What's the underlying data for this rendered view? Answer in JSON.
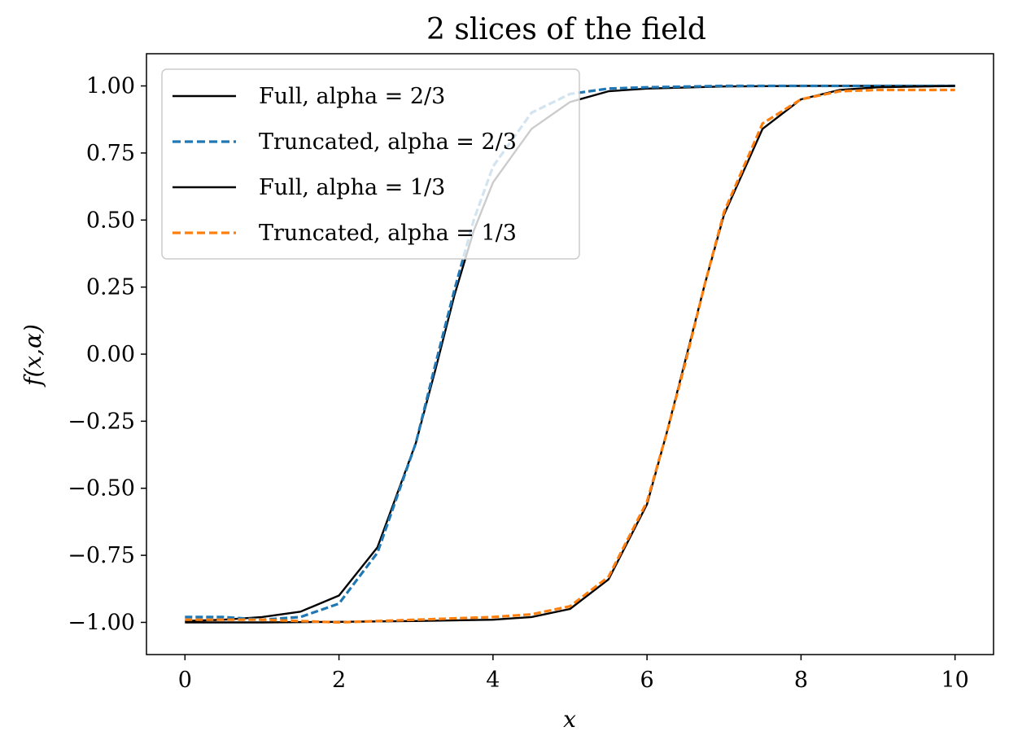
{
  "chart_data": {
    "type": "line",
    "title": "2 slices of the field",
    "xlabel": "x",
    "ylabel": "f(x,α)",
    "xlim": [
      -0.5,
      10.5
    ],
    "ylim": [
      -1.12,
      1.12
    ],
    "xticks": [
      0,
      2,
      4,
      6,
      8,
      10
    ],
    "xtick_labels": [
      "0",
      "2",
      "4",
      "6",
      "8",
      "10"
    ],
    "yticks": [
      1.0,
      0.75,
      0.5,
      0.25,
      0.0,
      -0.25,
      -0.5,
      -0.75,
      -1.0
    ],
    "ytick_labels": [
      "1.00",
      "0.75",
      "0.50",
      "0.25",
      "0.00",
      "−0.25",
      "−0.50",
      "−0.75",
      "−1.00"
    ],
    "grid": false,
    "legend_position": "top-left",
    "series": [
      {
        "name": "Full, alpha = 2/3",
        "color": "#000000",
        "style": "solid",
        "x": [
          0,
          0.5,
          1,
          1.5,
          2,
          2.5,
          3,
          3.25,
          3.5,
          3.75,
          4,
          4.5,
          5,
          5.5,
          6,
          7,
          8,
          9,
          10
        ],
        "y": [
          -0.995,
          -0.99,
          -0.98,
          -0.96,
          -0.9,
          -0.72,
          -0.33,
          -0.06,
          0.22,
          0.46,
          0.64,
          0.84,
          0.94,
          0.98,
          0.99,
          0.998,
          1.0,
          1.0,
          1.0
        ]
      },
      {
        "name": "Truncated, alpha = 2/3",
        "color": "#1f77b4",
        "style": "dashed",
        "x": [
          0,
          0.5,
          1,
          1.5,
          2,
          2.5,
          3,
          3.25,
          3.5,
          3.75,
          4,
          4.5,
          5,
          5.5,
          6,
          7,
          8,
          9,
          10
        ],
        "y": [
          -0.98,
          -0.98,
          -0.99,
          -0.98,
          -0.93,
          -0.74,
          -0.33,
          -0.04,
          0.24,
          0.5,
          0.7,
          0.9,
          0.97,
          0.99,
          0.995,
          1.0,
          1.0,
          1.0,
          1.0
        ]
      },
      {
        "name": "Full, alpha = 1/3",
        "color": "#000000",
        "style": "solid",
        "x": [
          0,
          1,
          2,
          3,
          4,
          4.5,
          5,
          5.5,
          6,
          6.25,
          6.5,
          6.75,
          7,
          7.5,
          8,
          8.5,
          9,
          10
        ],
        "y": [
          -1.0,
          -1.0,
          -0.998,
          -0.995,
          -0.99,
          -0.98,
          -0.95,
          -0.84,
          -0.56,
          -0.3,
          -0.02,
          0.26,
          0.52,
          0.84,
          0.95,
          0.985,
          0.995,
          1.0
        ]
      },
      {
        "name": "Truncated, alpha = 1/3",
        "color": "#ff7f0e",
        "style": "dashed",
        "x": [
          0,
          1,
          2,
          3,
          4,
          4.5,
          5,
          5.5,
          6,
          6.25,
          6.5,
          6.75,
          7,
          7.5,
          8,
          8.5,
          9,
          10
        ],
        "y": [
          -0.99,
          -0.99,
          -1.0,
          -0.99,
          -0.98,
          -0.97,
          -0.94,
          -0.83,
          -0.55,
          -0.3,
          -0.03,
          0.26,
          0.53,
          0.86,
          0.95,
          0.98,
          0.985,
          0.985
        ]
      }
    ]
  }
}
